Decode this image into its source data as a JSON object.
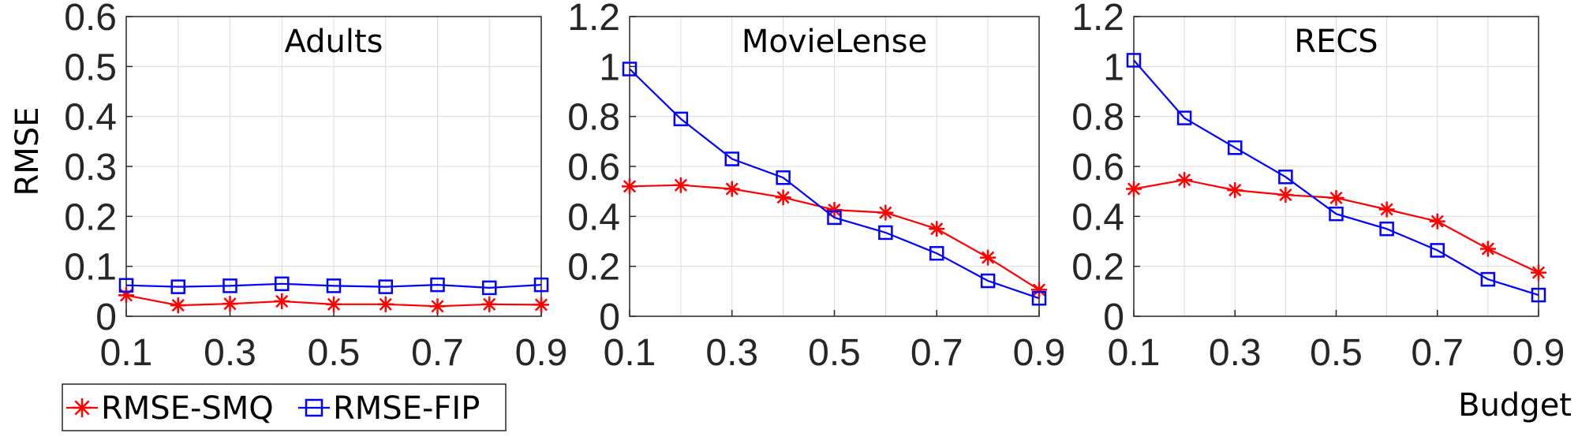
{
  "legend": {
    "entries": [
      {
        "label": "RMSE-SMQ",
        "color": "#ff0000",
        "marker": "asterisk"
      },
      {
        "label": "RMSE-FIP",
        "color": "#0000ff",
        "marker": "square"
      }
    ]
  },
  "ylabel": "RMSE",
  "xlabel": "Budget",
  "chart_data": [
    {
      "type": "line",
      "title": "Adults",
      "x": [
        0.1,
        0.2,
        0.3,
        0.4,
        0.5,
        0.6,
        0.7,
        0.8,
        0.9
      ],
      "xticks": [
        "0.1",
        "0.3",
        "0.5",
        "0.7",
        "0.9"
      ],
      "yticks": [
        "0",
        "0.1",
        "0.2",
        "0.3",
        "0.4",
        "0.5",
        "0.6"
      ],
      "xlim": [
        0.1,
        0.9
      ],
      "ylim": [
        0,
        0.6
      ],
      "grid": true,
      "series": [
        {
          "name": "RMSE-SMQ",
          "color": "#ff0000",
          "marker": "asterisk",
          "values": [
            0.042,
            0.022,
            0.025,
            0.03,
            0.024,
            0.024,
            0.02,
            0.024,
            0.023
          ]
        },
        {
          "name": "RMSE-FIP",
          "color": "#0000ff",
          "marker": "square",
          "values": [
            0.062,
            0.059,
            0.061,
            0.065,
            0.061,
            0.059,
            0.063,
            0.057,
            0.063
          ]
        }
      ]
    },
    {
      "type": "line",
      "title": "MovieLense",
      "x": [
        0.1,
        0.2,
        0.3,
        0.4,
        0.5,
        0.6,
        0.7,
        0.8,
        0.9
      ],
      "xticks": [
        "0.1",
        "0.3",
        "0.5",
        "0.7",
        "0.9"
      ],
      "yticks": [
        "0",
        "0.2",
        "0.4",
        "0.6",
        "0.8",
        "1",
        "1.2"
      ],
      "xlim": [
        0.1,
        0.9
      ],
      "ylim": [
        0,
        1.2
      ],
      "grid": true,
      "series": [
        {
          "name": "RMSE-SMQ",
          "color": "#ff0000",
          "marker": "asterisk",
          "values": [
            0.52,
            0.525,
            0.51,
            0.476,
            0.426,
            0.415,
            0.35,
            0.235,
            0.106
          ]
        },
        {
          "name": "RMSE-FIP",
          "color": "#0000ff",
          "marker": "square",
          "values": [
            0.99,
            0.79,
            0.63,
            0.555,
            0.395,
            0.335,
            0.252,
            0.142,
            0.072
          ]
        }
      ]
    },
    {
      "type": "line",
      "title": "RECS",
      "x": [
        0.1,
        0.2,
        0.3,
        0.4,
        0.5,
        0.6,
        0.7,
        0.8,
        0.9
      ],
      "xticks": [
        "0.1",
        "0.3",
        "0.5",
        "0.7",
        "0.9"
      ],
      "yticks": [
        "0",
        "0.2",
        "0.4",
        "0.6",
        "0.8",
        "1",
        "1.2"
      ],
      "xlim": [
        0.1,
        0.9
      ],
      "ylim": [
        0,
        1.2
      ],
      "grid": true,
      "series": [
        {
          "name": "RMSE-SMQ",
          "color": "#ff0000",
          "marker": "asterisk",
          "values": [
            0.51,
            0.546,
            0.505,
            0.486,
            0.474,
            0.428,
            0.38,
            0.27,
            0.175
          ]
        },
        {
          "name": "RMSE-FIP",
          "color": "#0000ff",
          "marker": "square",
          "values": [
            1.025,
            0.794,
            0.675,
            0.558,
            0.41,
            0.35,
            0.264,
            0.148,
            0.085
          ]
        }
      ]
    }
  ]
}
